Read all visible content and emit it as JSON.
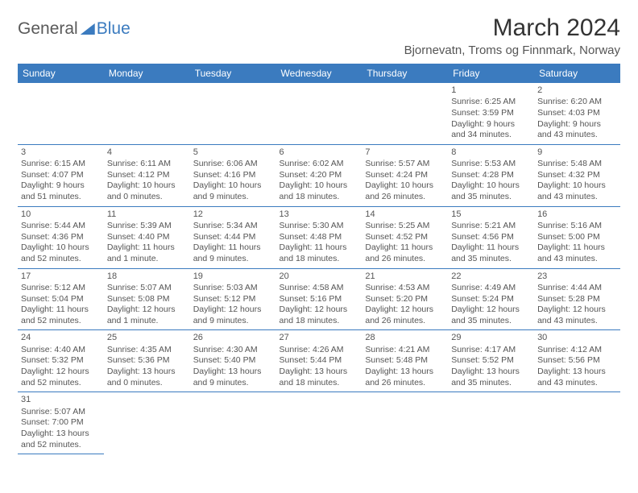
{
  "logo": {
    "part1": "General",
    "part2": "Blue"
  },
  "title": "March 2024",
  "subtitle": "Bjornevatn, Troms og Finnmark, Norway",
  "weekdays": [
    "Sunday",
    "Monday",
    "Tuesday",
    "Wednesday",
    "Thursday",
    "Friday",
    "Saturday"
  ],
  "colors": {
    "accent": "#3b7bbf",
    "text": "#555",
    "bg": "#ffffff"
  },
  "fonts": {
    "title_size": 30,
    "subtitle_size": 15,
    "header_size": 12,
    "cell_size": 10.5
  },
  "weeks": [
    [
      null,
      null,
      null,
      null,
      null,
      {
        "n": "1",
        "sr": "Sunrise: 6:25 AM",
        "ss": "Sunset: 3:59 PM",
        "d1": "Daylight: 9 hours",
        "d2": "and 34 minutes."
      },
      {
        "n": "2",
        "sr": "Sunrise: 6:20 AM",
        "ss": "Sunset: 4:03 PM",
        "d1": "Daylight: 9 hours",
        "d2": "and 43 minutes."
      }
    ],
    [
      {
        "n": "3",
        "sr": "Sunrise: 6:15 AM",
        "ss": "Sunset: 4:07 PM",
        "d1": "Daylight: 9 hours",
        "d2": "and 51 minutes."
      },
      {
        "n": "4",
        "sr": "Sunrise: 6:11 AM",
        "ss": "Sunset: 4:12 PM",
        "d1": "Daylight: 10 hours",
        "d2": "and 0 minutes."
      },
      {
        "n": "5",
        "sr": "Sunrise: 6:06 AM",
        "ss": "Sunset: 4:16 PM",
        "d1": "Daylight: 10 hours",
        "d2": "and 9 minutes."
      },
      {
        "n": "6",
        "sr": "Sunrise: 6:02 AM",
        "ss": "Sunset: 4:20 PM",
        "d1": "Daylight: 10 hours",
        "d2": "and 18 minutes."
      },
      {
        "n": "7",
        "sr": "Sunrise: 5:57 AM",
        "ss": "Sunset: 4:24 PM",
        "d1": "Daylight: 10 hours",
        "d2": "and 26 minutes."
      },
      {
        "n": "8",
        "sr": "Sunrise: 5:53 AM",
        "ss": "Sunset: 4:28 PM",
        "d1": "Daylight: 10 hours",
        "d2": "and 35 minutes."
      },
      {
        "n": "9",
        "sr": "Sunrise: 5:48 AM",
        "ss": "Sunset: 4:32 PM",
        "d1": "Daylight: 10 hours",
        "d2": "and 43 minutes."
      }
    ],
    [
      {
        "n": "10",
        "sr": "Sunrise: 5:44 AM",
        "ss": "Sunset: 4:36 PM",
        "d1": "Daylight: 10 hours",
        "d2": "and 52 minutes."
      },
      {
        "n": "11",
        "sr": "Sunrise: 5:39 AM",
        "ss": "Sunset: 4:40 PM",
        "d1": "Daylight: 11 hours",
        "d2": "and 1 minute."
      },
      {
        "n": "12",
        "sr": "Sunrise: 5:34 AM",
        "ss": "Sunset: 4:44 PM",
        "d1": "Daylight: 11 hours",
        "d2": "and 9 minutes."
      },
      {
        "n": "13",
        "sr": "Sunrise: 5:30 AM",
        "ss": "Sunset: 4:48 PM",
        "d1": "Daylight: 11 hours",
        "d2": "and 18 minutes."
      },
      {
        "n": "14",
        "sr": "Sunrise: 5:25 AM",
        "ss": "Sunset: 4:52 PM",
        "d1": "Daylight: 11 hours",
        "d2": "and 26 minutes."
      },
      {
        "n": "15",
        "sr": "Sunrise: 5:21 AM",
        "ss": "Sunset: 4:56 PM",
        "d1": "Daylight: 11 hours",
        "d2": "and 35 minutes."
      },
      {
        "n": "16",
        "sr": "Sunrise: 5:16 AM",
        "ss": "Sunset: 5:00 PM",
        "d1": "Daylight: 11 hours",
        "d2": "and 43 minutes."
      }
    ],
    [
      {
        "n": "17",
        "sr": "Sunrise: 5:12 AM",
        "ss": "Sunset: 5:04 PM",
        "d1": "Daylight: 11 hours",
        "d2": "and 52 minutes."
      },
      {
        "n": "18",
        "sr": "Sunrise: 5:07 AM",
        "ss": "Sunset: 5:08 PM",
        "d1": "Daylight: 12 hours",
        "d2": "and 1 minute."
      },
      {
        "n": "19",
        "sr": "Sunrise: 5:03 AM",
        "ss": "Sunset: 5:12 PM",
        "d1": "Daylight: 12 hours",
        "d2": "and 9 minutes."
      },
      {
        "n": "20",
        "sr": "Sunrise: 4:58 AM",
        "ss": "Sunset: 5:16 PM",
        "d1": "Daylight: 12 hours",
        "d2": "and 18 minutes."
      },
      {
        "n": "21",
        "sr": "Sunrise: 4:53 AM",
        "ss": "Sunset: 5:20 PM",
        "d1": "Daylight: 12 hours",
        "d2": "and 26 minutes."
      },
      {
        "n": "22",
        "sr": "Sunrise: 4:49 AM",
        "ss": "Sunset: 5:24 PM",
        "d1": "Daylight: 12 hours",
        "d2": "and 35 minutes."
      },
      {
        "n": "23",
        "sr": "Sunrise: 4:44 AM",
        "ss": "Sunset: 5:28 PM",
        "d1": "Daylight: 12 hours",
        "d2": "and 43 minutes."
      }
    ],
    [
      {
        "n": "24",
        "sr": "Sunrise: 4:40 AM",
        "ss": "Sunset: 5:32 PM",
        "d1": "Daylight: 12 hours",
        "d2": "and 52 minutes."
      },
      {
        "n": "25",
        "sr": "Sunrise: 4:35 AM",
        "ss": "Sunset: 5:36 PM",
        "d1": "Daylight: 13 hours",
        "d2": "and 0 minutes."
      },
      {
        "n": "26",
        "sr": "Sunrise: 4:30 AM",
        "ss": "Sunset: 5:40 PM",
        "d1": "Daylight: 13 hours",
        "d2": "and 9 minutes."
      },
      {
        "n": "27",
        "sr": "Sunrise: 4:26 AM",
        "ss": "Sunset: 5:44 PM",
        "d1": "Daylight: 13 hours",
        "d2": "and 18 minutes."
      },
      {
        "n": "28",
        "sr": "Sunrise: 4:21 AM",
        "ss": "Sunset: 5:48 PM",
        "d1": "Daylight: 13 hours",
        "d2": "and 26 minutes."
      },
      {
        "n": "29",
        "sr": "Sunrise: 4:17 AM",
        "ss": "Sunset: 5:52 PM",
        "d1": "Daylight: 13 hours",
        "d2": "and 35 minutes."
      },
      {
        "n": "30",
        "sr": "Sunrise: 4:12 AM",
        "ss": "Sunset: 5:56 PM",
        "d1": "Daylight: 13 hours",
        "d2": "and 43 minutes."
      }
    ],
    [
      {
        "n": "31",
        "sr": "Sunrise: 5:07 AM",
        "ss": "Sunset: 7:00 PM",
        "d1": "Daylight: 13 hours",
        "d2": "and 52 minutes."
      },
      null,
      null,
      null,
      null,
      null,
      null
    ]
  ]
}
